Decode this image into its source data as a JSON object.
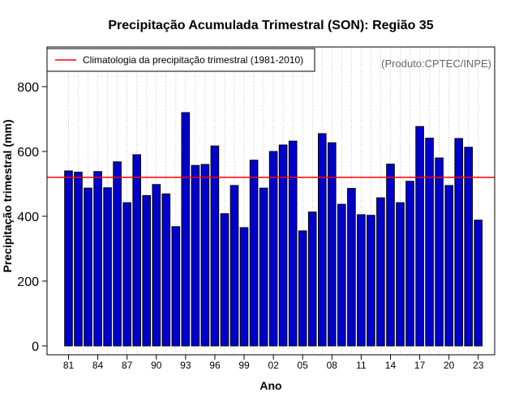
{
  "chart_data": {
    "type": "bar",
    "title": "Precipitação Acumulada Trimestral (SON): Região 35",
    "xlabel": "Ano",
    "ylabel": "Precipitação trimestral (mm)",
    "ylim": [
      0,
      920
    ],
    "yticks": [
      0,
      200,
      400,
      600,
      800
    ],
    "years": [
      1981,
      1982,
      1983,
      1984,
      1985,
      1986,
      1987,
      1988,
      1989,
      1990,
      1991,
      1992,
      1993,
      1994,
      1995,
      1996,
      1997,
      1998,
      1999,
      2000,
      2001,
      2002,
      2003,
      2004,
      2005,
      2006,
      2007,
      2008,
      2009,
      2010,
      2011,
      2012,
      2013,
      2014,
      2015,
      2016,
      2017,
      2018,
      2019,
      2020,
      2021,
      2022,
      2023
    ],
    "xtick_labels": [
      {
        "year": 1981,
        "label": "81"
      },
      {
        "year": 1984,
        "label": "84"
      },
      {
        "year": 1987,
        "label": "87"
      },
      {
        "year": 1990,
        "label": "90"
      },
      {
        "year": 1993,
        "label": "93"
      },
      {
        "year": 1996,
        "label": "96"
      },
      {
        "year": 1999,
        "label": "99"
      },
      {
        "year": 2002,
        "label": "02"
      },
      {
        "year": 2005,
        "label": "05"
      },
      {
        "year": 2008,
        "label": "08"
      },
      {
        "year": 2011,
        "label": "11"
      },
      {
        "year": 2014,
        "label": "14"
      },
      {
        "year": 2017,
        "label": "17"
      },
      {
        "year": 2020,
        "label": "20"
      },
      {
        "year": 2023,
        "label": "23"
      }
    ],
    "series": [
      {
        "name": "Precipitação trimestral",
        "color": "#0000cd",
        "values": [
          540,
          536,
          487,
          538,
          488,
          568,
          442,
          590,
          464,
          498,
          469,
          368,
          720,
          557,
          560,
          617,
          408,
          495,
          365,
          573,
          487,
          600,
          620,
          632,
          355,
          413,
          655,
          627,
          437,
          486,
          405,
          403,
          457,
          561,
          442,
          508,
          677,
          641,
          580,
          495,
          640,
          613,
          388
        ]
      }
    ],
    "climatology": {
      "label": "Climatologia da precipitação trimestral (1981-2010)",
      "value": 520,
      "color": "#ff0000"
    },
    "grid": "vertical dotted",
    "legend_position": "top-left",
    "credit": "(Produto:CPTEC/INPE)"
  }
}
